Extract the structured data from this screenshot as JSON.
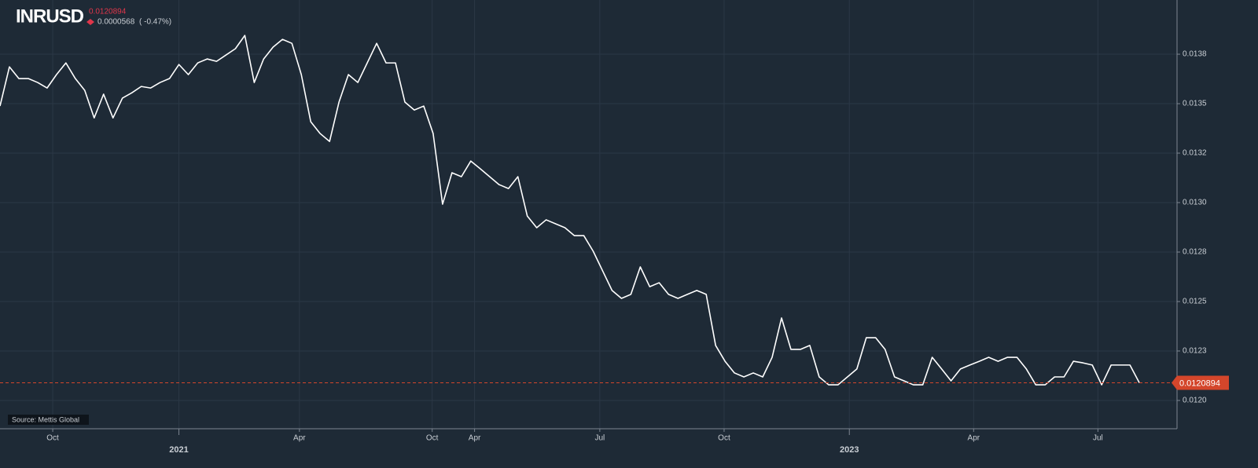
{
  "chart_data": {
    "type": "line",
    "title": "INRUSD",
    "last_price_label": "0.0120894",
    "change": "0.0000568",
    "change_pct": "( -0.47%)",
    "source": "Source: Mettis Global",
    "color": "#ffffff",
    "last_color": "#d4462b",
    "grid": true,
    "values": [
      0.013488,
      0.013686,
      0.013627,
      0.013627,
      0.013607,
      0.013579,
      0.013647,
      0.013706,
      0.013627,
      0.013567,
      0.013428,
      0.013548,
      0.013428,
      0.013528,
      0.013555,
      0.013587,
      0.013579,
      0.013607,
      0.013627,
      0.013698,
      0.013647,
      0.013706,
      0.013726,
      0.013714,
      0.013746,
      0.013778,
      0.013845,
      0.013607,
      0.013726,
      0.013786,
      0.013825,
      0.013805,
      0.013647,
      0.013409,
      0.013349,
      0.013309,
      0.013508,
      0.013647,
      0.013607,
      0.013706,
      0.013805,
      0.013706,
      0.013706,
      0.013508,
      0.013468,
      0.013488,
      0.013349,
      0.012992,
      0.013151,
      0.013131,
      0.01321,
      0.013171,
      0.013131,
      0.013091,
      0.013071,
      0.013131,
      0.012932,
      0.012873,
      0.012913,
      0.012893,
      0.012873,
      0.012833,
      0.012833,
      0.012754,
      0.012655,
      0.012556,
      0.012516,
      0.012536,
      0.012675,
      0.012575,
      0.012595,
      0.012536,
      0.012516,
      0.012536,
      0.012556,
      0.012536,
      0.012278,
      0.012198,
      0.012139,
      0.012119,
      0.012139,
      0.012119,
      0.012218,
      0.012417,
      0.012258,
      0.012258,
      0.012278,
      0.012119,
      0.012079,
      0.012079,
      0.012119,
      0.012159,
      0.012317,
      0.012317,
      0.012258,
      0.012119,
      0.012099,
      0.012079,
      0.012079,
      0.012218,
      0.012159,
      0.012099,
      0.012159,
      0.012179,
      0.012198,
      0.012218,
      0.012198,
      0.012218,
      0.012218,
      0.012159,
      0.012079,
      0.012079,
      0.012119,
      0.012119,
      0.012198,
      0.01219,
      0.012179,
      0.012079,
      0.012179,
      0.012179,
      0.012179,
      0.0120894
    ],
    "xlim": [
      0,
      125
    ],
    "xticks": [
      {
        "value": 5.6,
        "label": "Oct"
      },
      {
        "value": 19,
        "label": "2021"
      },
      {
        "value": 31.8,
        "label": "Apr"
      },
      {
        "value": 45.9,
        "label": "Oct"
      },
      {
        "value": 50.4,
        "label": "Apr"
      },
      {
        "value": 63.7,
        "label": "Jul"
      },
      {
        "value": 76.9,
        "label": "Oct"
      },
      {
        "value": 90.2,
        "label": "2023"
      },
      {
        "value": 103.4,
        "label": "Apr"
      },
      {
        "value": 116.6,
        "label": "Jul"
      }
    ],
    "ylim": [
      0.011857,
      0.014024
    ],
    "yticks": [
      {
        "value": 0.012,
        "label": "0.0120"
      },
      {
        "value": 0.01225,
        "label": "0.0123"
      },
      {
        "value": 0.0125,
        "label": "0.0125"
      },
      {
        "value": 0.01275,
        "label": "0.0128"
      },
      {
        "value": 0.013,
        "label": "0.0130"
      },
      {
        "value": 0.01325,
        "label": "0.0132"
      },
      {
        "value": 0.0135,
        "label": "0.0135"
      },
      {
        "value": 0.01375,
        "label": "0.0138"
      }
    ]
  }
}
